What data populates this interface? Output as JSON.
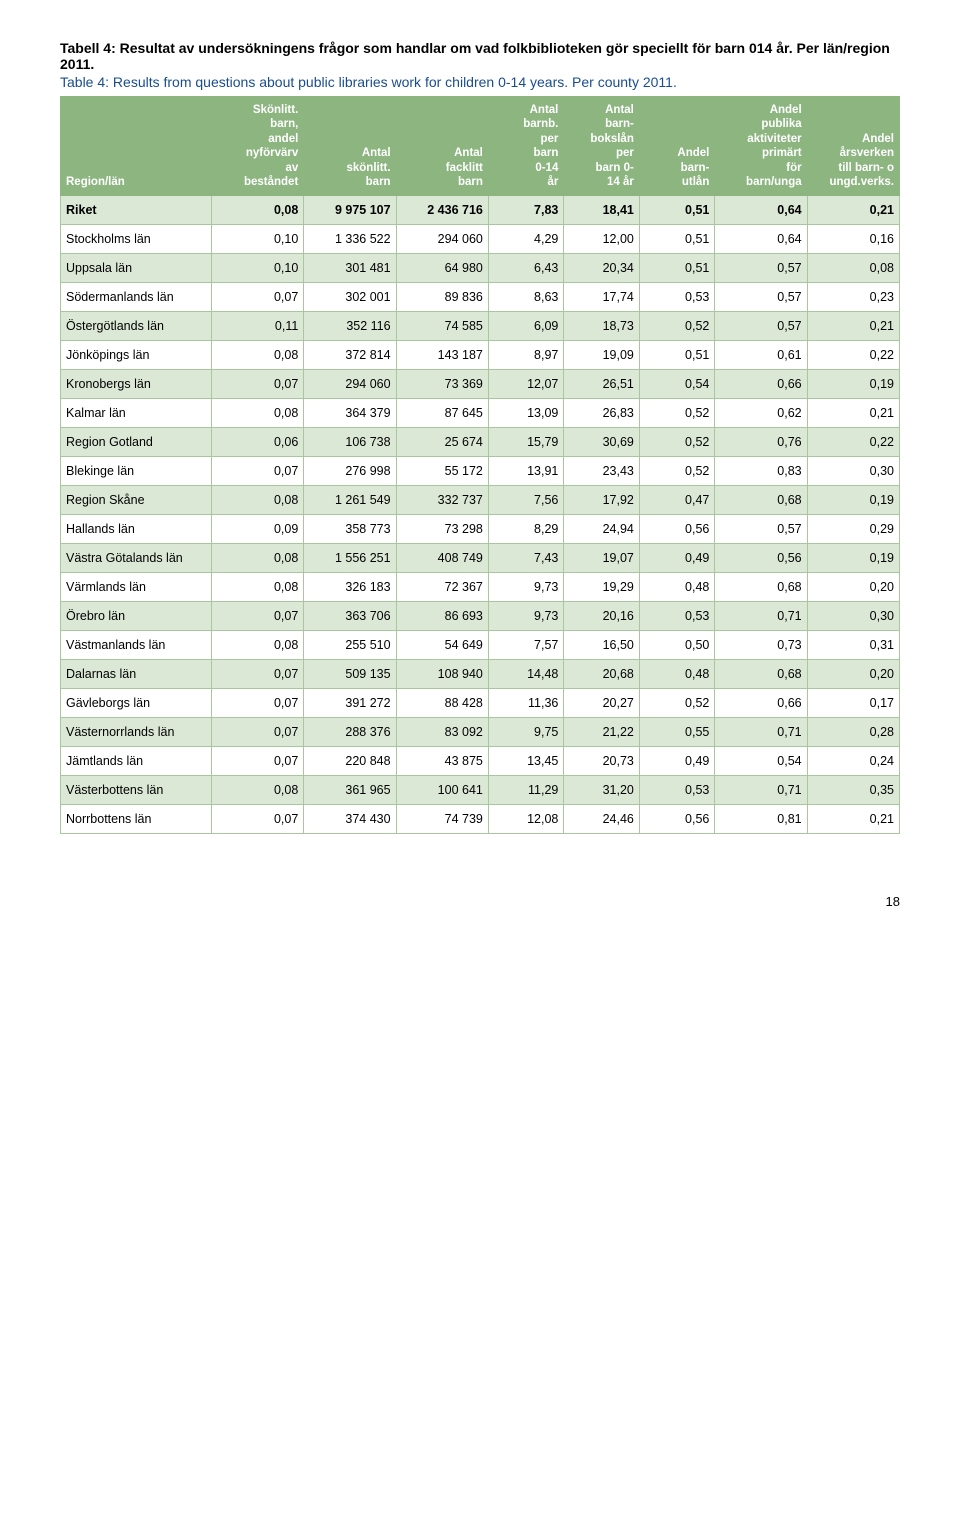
{
  "title_sv": "Tabell 4: Resultat av undersökningens frågor som handlar om vad folkbiblioteken gör speciellt för barn 014 år. Per län/region 2011.",
  "title_en": "Table 4: Results from questions about public libraries work for children 0-14 years. Per county 2011.",
  "page_number": "18",
  "table": {
    "columns": [
      "Region/län",
      "Skönlitt. barn, andel nyförvärv av beståndet",
      "Antal skönlitt. barn",
      "Antal facklitt barn",
      "Antal barnb. per barn 0-14 år",
      "Antal barn- bokslån per barn 0- 14 år",
      "Andel barn- utlån",
      "Andel publika aktiviteter primärt för barn/unga",
      "Andel årsverken till barn- o ungd.verks."
    ],
    "col_widths_pct": [
      18,
      11,
      11,
      11,
      9,
      9,
      9,
      11,
      11
    ],
    "header_bg": "#8cb580",
    "header_color": "#ffffff",
    "border_color": "#a8c79e",
    "row_shaded_bg": "#dce8d6",
    "rows": [
      {
        "shaded": true,
        "bold": true,
        "cells": [
          "Riket",
          "0,08",
          "9 975 107",
          "2 436 716",
          "7,83",
          "18,41",
          "0,51",
          "0,64",
          "0,21"
        ]
      },
      {
        "shaded": false,
        "bold": false,
        "cells": [
          "Stockholms län",
          "0,10",
          "1 336 522",
          "294 060",
          "4,29",
          "12,00",
          "0,51",
          "0,64",
          "0,16"
        ]
      },
      {
        "shaded": true,
        "bold": false,
        "cells": [
          "Uppsala län",
          "0,10",
          "301 481",
          "64 980",
          "6,43",
          "20,34",
          "0,51",
          "0,57",
          "0,08"
        ]
      },
      {
        "shaded": false,
        "bold": false,
        "cells": [
          "Södermanlands län",
          "0,07",
          "302 001",
          "89 836",
          "8,63",
          "17,74",
          "0,53",
          "0,57",
          "0,23"
        ]
      },
      {
        "shaded": true,
        "bold": false,
        "cells": [
          "Östergötlands län",
          "0,11",
          "352 116",
          "74 585",
          "6,09",
          "18,73",
          "0,52",
          "0,57",
          "0,21"
        ]
      },
      {
        "shaded": false,
        "bold": false,
        "cells": [
          "Jönköpings län",
          "0,08",
          "372 814",
          "143 187",
          "8,97",
          "19,09",
          "0,51",
          "0,61",
          "0,22"
        ]
      },
      {
        "shaded": true,
        "bold": false,
        "cells": [
          "Kronobergs län",
          "0,07",
          "294 060",
          "73 369",
          "12,07",
          "26,51",
          "0,54",
          "0,66",
          "0,19"
        ]
      },
      {
        "shaded": false,
        "bold": false,
        "cells": [
          "Kalmar län",
          "0,08",
          "364 379",
          "87 645",
          "13,09",
          "26,83",
          "0,52",
          "0,62",
          "0,21"
        ]
      },
      {
        "shaded": true,
        "bold": false,
        "cells": [
          "Region Gotland",
          "0,06",
          "106 738",
          "25 674",
          "15,79",
          "30,69",
          "0,52",
          "0,76",
          "0,22"
        ]
      },
      {
        "shaded": false,
        "bold": false,
        "cells": [
          "Blekinge län",
          "0,07",
          "276 998",
          "55 172",
          "13,91",
          "23,43",
          "0,52",
          "0,83",
          "0,30"
        ]
      },
      {
        "shaded": true,
        "bold": false,
        "cells": [
          "Region Skåne",
          "0,08",
          "1 261 549",
          "332 737",
          "7,56",
          "17,92",
          "0,47",
          "0,68",
          "0,19"
        ]
      },
      {
        "shaded": false,
        "bold": false,
        "cells": [
          "Hallands län",
          "0,09",
          "358 773",
          "73 298",
          "8,29",
          "24,94",
          "0,56",
          "0,57",
          "0,29"
        ]
      },
      {
        "shaded": true,
        "bold": false,
        "cells": [
          "Västra Götalands län",
          "0,08",
          "1 556 251",
          "408 749",
          "7,43",
          "19,07",
          "0,49",
          "0,56",
          "0,19"
        ]
      },
      {
        "shaded": false,
        "bold": false,
        "cells": [
          "Värmlands län",
          "0,08",
          "326 183",
          "72 367",
          "9,73",
          "19,29",
          "0,48",
          "0,68",
          "0,20"
        ]
      },
      {
        "shaded": true,
        "bold": false,
        "cells": [
          "Örebro län",
          "0,07",
          "363 706",
          "86 693",
          "9,73",
          "20,16",
          "0,53",
          "0,71",
          "0,30"
        ]
      },
      {
        "shaded": false,
        "bold": false,
        "cells": [
          "Västmanlands län",
          "0,08",
          "255 510",
          "54 649",
          "7,57",
          "16,50",
          "0,50",
          "0,73",
          "0,31"
        ]
      },
      {
        "shaded": true,
        "bold": false,
        "cells": [
          "Dalarnas län",
          "0,07",
          "509 135",
          "108 940",
          "14,48",
          "20,68",
          "0,48",
          "0,68",
          "0,20"
        ]
      },
      {
        "shaded": false,
        "bold": false,
        "cells": [
          "Gävleborgs län",
          "0,07",
          "391 272",
          "88 428",
          "11,36",
          "20,27",
          "0,52",
          "0,66",
          "0,17"
        ]
      },
      {
        "shaded": true,
        "bold": false,
        "cells": [
          "Västernorrlands län",
          "0,07",
          "288 376",
          "83 092",
          "9,75",
          "21,22",
          "0,55",
          "0,71",
          "0,28"
        ]
      },
      {
        "shaded": false,
        "bold": false,
        "cells": [
          "Jämtlands län",
          "0,07",
          "220 848",
          "43 875",
          "13,45",
          "20,73",
          "0,49",
          "0,54",
          "0,24"
        ]
      },
      {
        "shaded": true,
        "bold": false,
        "cells": [
          "Västerbottens län",
          "0,08",
          "361 965",
          "100 641",
          "11,29",
          "31,20",
          "0,53",
          "0,71",
          "0,35"
        ]
      },
      {
        "shaded": false,
        "bold": false,
        "cells": [
          "Norrbottens län",
          "0,07",
          "374 430",
          "74 739",
          "12,08",
          "24,46",
          "0,56",
          "0,81",
          "0,21"
        ]
      }
    ]
  }
}
